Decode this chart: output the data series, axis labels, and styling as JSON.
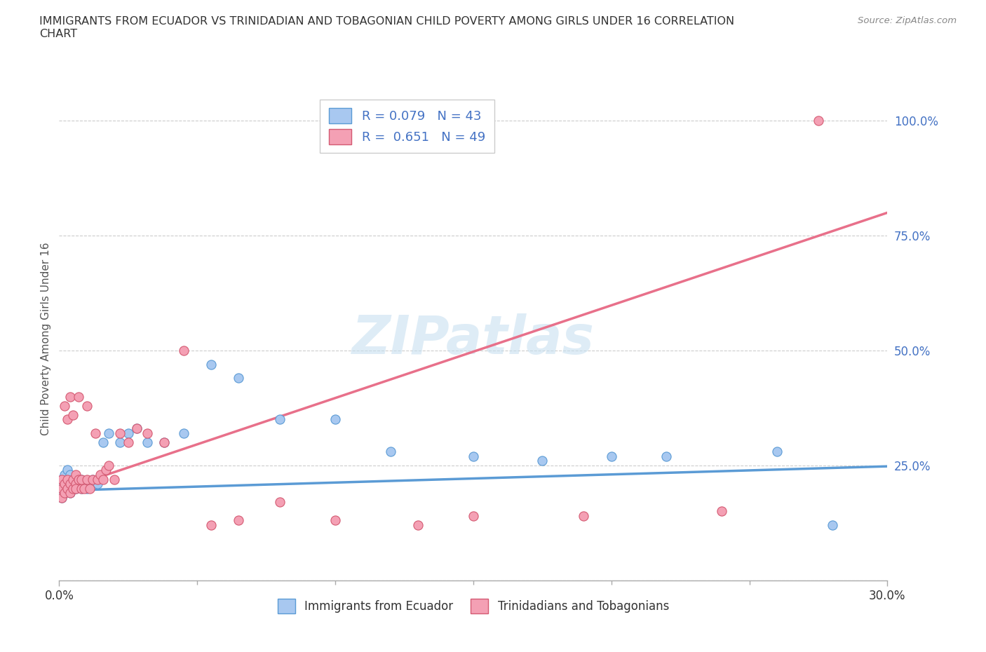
{
  "title": "IMMIGRANTS FROM ECUADOR VS TRINIDADIAN AND TOBAGONIAN CHILD POVERTY AMONG GIRLS UNDER 16 CORRELATION\nCHART",
  "source": "Source: ZipAtlas.com",
  "ylabel": "Child Poverty Among Girls Under 16",
  "xlim": [
    0.0,
    0.3
  ],
  "ylim": [
    0.0,
    1.05
  ],
  "yticks": [
    0.0,
    0.25,
    0.5,
    0.75,
    1.0
  ],
  "ytick_labels": [
    "",
    "25.0%",
    "50.0%",
    "75.0%",
    "100.0%"
  ],
  "xticks": [
    0.0,
    0.3
  ],
  "xtick_labels": [
    "0.0%",
    "30.0%"
  ],
  "legend_labels": [
    "Immigrants from Ecuador",
    "Trinidadians and Tobagonians"
  ],
  "r_ecuador": 0.079,
  "n_ecuador": 43,
  "r_trinidadian": 0.651,
  "n_trinidadian": 49,
  "color_ecuador": "#a8c8f0",
  "color_trinidadian": "#f4a0b4",
  "line_color_ecuador": "#5b9bd5",
  "line_color_trinidadian": "#e8708a",
  "watermark": "ZIPatlas",
  "ecuador_x": [
    0.001,
    0.001,
    0.001,
    0.002,
    0.002,
    0.002,
    0.003,
    0.003,
    0.003,
    0.004,
    0.004,
    0.004,
    0.005,
    0.005,
    0.006,
    0.006,
    0.007,
    0.007,
    0.008,
    0.008,
    0.009,
    0.01,
    0.012,
    0.014,
    0.016,
    0.018,
    0.022,
    0.025,
    0.028,
    0.032,
    0.038,
    0.045,
    0.055,
    0.065,
    0.08,
    0.1,
    0.12,
    0.15,
    0.175,
    0.2,
    0.22,
    0.26,
    0.28
  ],
  "ecuador_y": [
    0.2,
    0.22,
    0.18,
    0.21,
    0.23,
    0.19,
    0.2,
    0.22,
    0.24,
    0.21,
    0.19,
    0.23,
    0.2,
    0.22,
    0.21,
    0.2,
    0.22,
    0.21,
    0.2,
    0.22,
    0.21,
    0.2,
    0.22,
    0.21,
    0.3,
    0.32,
    0.3,
    0.32,
    0.33,
    0.3,
    0.3,
    0.32,
    0.47,
    0.44,
    0.35,
    0.35,
    0.28,
    0.27,
    0.26,
    0.27,
    0.27,
    0.28,
    0.12
  ],
  "trinidadian_x": [
    0.001,
    0.001,
    0.001,
    0.002,
    0.002,
    0.002,
    0.003,
    0.003,
    0.003,
    0.004,
    0.004,
    0.004,
    0.005,
    0.005,
    0.005,
    0.006,
    0.006,
    0.006,
    0.007,
    0.007,
    0.008,
    0.008,
    0.009,
    0.01,
    0.01,
    0.011,
    0.012,
    0.013,
    0.014,
    0.015,
    0.016,
    0.017,
    0.018,
    0.02,
    0.022,
    0.025,
    0.028,
    0.032,
    0.038,
    0.045,
    0.055,
    0.065,
    0.08,
    0.1,
    0.13,
    0.15,
    0.19,
    0.24,
    0.275
  ],
  "trinidadian_y": [
    0.2,
    0.22,
    0.18,
    0.19,
    0.21,
    0.38,
    0.2,
    0.22,
    0.35,
    0.21,
    0.4,
    0.19,
    0.22,
    0.36,
    0.2,
    0.21,
    0.23,
    0.2,
    0.22,
    0.4,
    0.2,
    0.22,
    0.2,
    0.22,
    0.38,
    0.2,
    0.22,
    0.32,
    0.22,
    0.23,
    0.22,
    0.24,
    0.25,
    0.22,
    0.32,
    0.3,
    0.33,
    0.32,
    0.3,
    0.5,
    0.12,
    0.13,
    0.17,
    0.13,
    0.12,
    0.14,
    0.14,
    0.15,
    1.0
  ]
}
